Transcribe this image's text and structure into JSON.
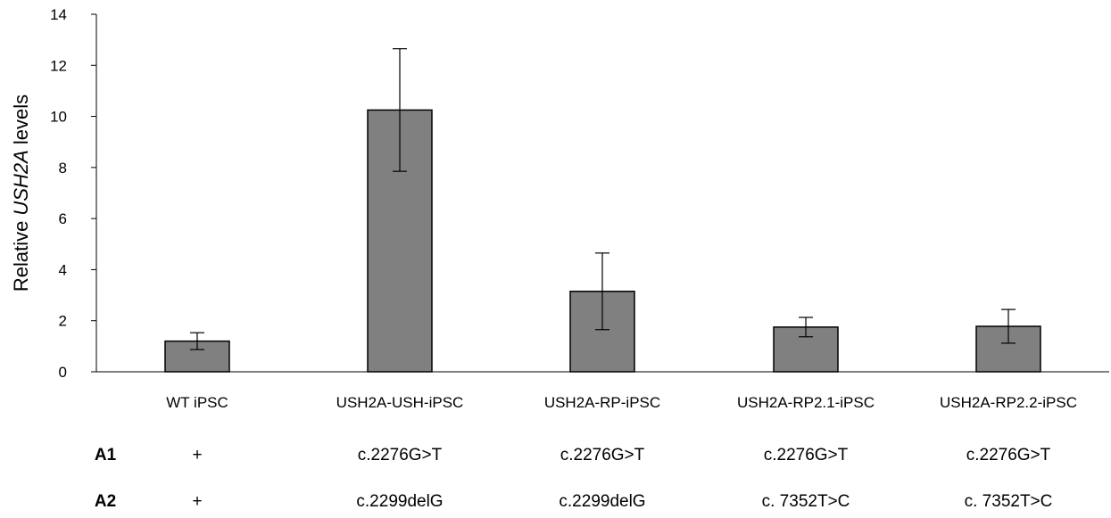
{
  "chart_data": {
    "type": "bar",
    "ylabel_parts": [
      "Relative ",
      "USH2A",
      " levels"
    ],
    "ylim": [
      0,
      14
    ],
    "yticks": [
      0,
      2,
      4,
      6,
      8,
      10,
      12,
      14
    ],
    "categories": [
      "WT iPSC",
      "USH2A-USH-iPSC",
      "USH2A-RP-iPSC",
      "USH2A-RP2.1-iPSC",
      "USH2A-RP2.2-iPSC"
    ],
    "values": [
      1.2,
      10.25,
      3.15,
      1.75,
      1.78
    ],
    "error": [
      0.33,
      2.4,
      1.5,
      0.38,
      0.66
    ],
    "bar_color": "#808080",
    "grid": false,
    "legend": "none"
  },
  "allele_table": {
    "rows": [
      {
        "label": "A1",
        "values": [
          "+",
          "c.2276G>T",
          "c.2276G>T",
          "c.2276G>T",
          "c.2276G>T"
        ]
      },
      {
        "label": "A2",
        "values": [
          "+",
          "c.2299delG",
          "c.2299delG",
          "c. 7352T>C",
          "c. 7352T>C"
        ]
      }
    ]
  }
}
